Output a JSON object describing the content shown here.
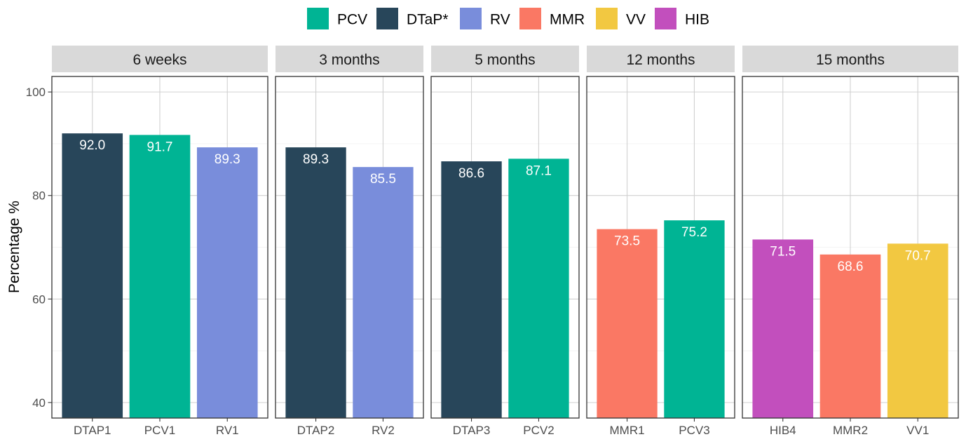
{
  "chart_data": {
    "type": "bar",
    "ylabel": "Percentage %",
    "xlabel": "",
    "ylim": [
      37,
      103
    ],
    "yticks": [
      40,
      60,
      80,
      100
    ],
    "legend": {
      "position": "top",
      "items": [
        {
          "label": "PCV",
          "color": "#00b494"
        },
        {
          "label": "DTaP*",
          "color": "#28465a"
        },
        {
          "label": "RV",
          "color": "#798ddb"
        },
        {
          "label": "MMR",
          "color": "#fa7864"
        },
        {
          "label": "VV",
          "color": "#f2c841"
        },
        {
          "label": "HIB",
          "color": "#c24fbd"
        }
      ]
    },
    "facets": [
      {
        "title": "6 weeks",
        "bars": [
          {
            "category": "DTAP1",
            "vaccine": "DTaP*",
            "value": 92.0,
            "label": "92.0"
          },
          {
            "category": "PCV1",
            "vaccine": "PCV",
            "value": 91.7,
            "label": "91.7"
          },
          {
            "category": "RV1",
            "vaccine": "RV",
            "value": 89.3,
            "label": "89.3"
          }
        ]
      },
      {
        "title": "3 months",
        "bars": [
          {
            "category": "DTAP2",
            "vaccine": "DTaP*",
            "value": 89.3,
            "label": "89.3"
          },
          {
            "category": "RV2",
            "vaccine": "RV",
            "value": 85.5,
            "label": "85.5"
          }
        ]
      },
      {
        "title": "5 months",
        "bars": [
          {
            "category": "DTAP3",
            "vaccine": "DTaP*",
            "value": 86.6,
            "label": "86.6"
          },
          {
            "category": "PCV2",
            "vaccine": "PCV",
            "value": 87.1,
            "label": "87.1"
          }
        ]
      },
      {
        "title": "12 months",
        "bars": [
          {
            "category": "MMR1",
            "vaccine": "MMR",
            "value": 73.5,
            "label": "73.5"
          },
          {
            "category": "PCV3",
            "vaccine": "PCV",
            "value": 75.2,
            "label": "75.2"
          }
        ]
      },
      {
        "title": "15 months",
        "bars": [
          {
            "category": "HIB4",
            "vaccine": "HIB",
            "value": 71.5,
            "label": "71.5"
          },
          {
            "category": "MMR2",
            "vaccine": "MMR",
            "value": 68.6,
            "label": "68.6"
          },
          {
            "category": "VV1",
            "vaccine": "VV",
            "value": 70.7,
            "label": "70.7"
          }
        ]
      }
    ]
  }
}
